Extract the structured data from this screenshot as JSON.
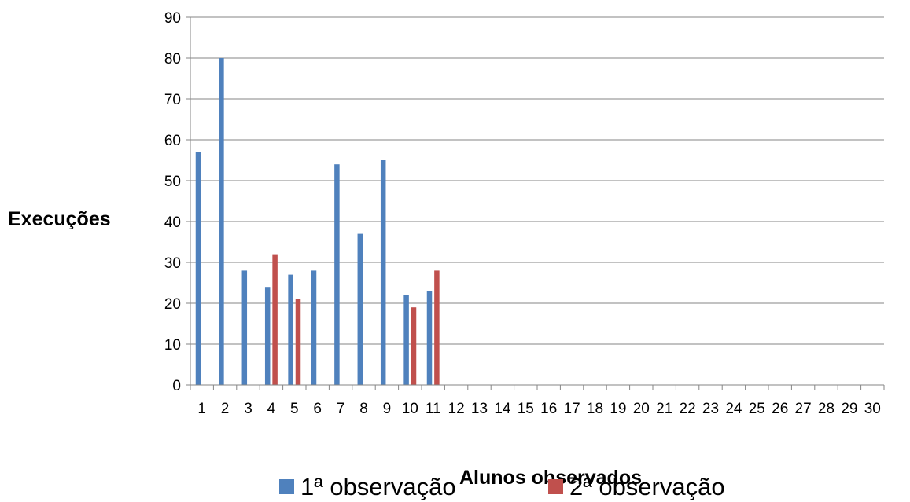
{
  "chart_data": {
    "type": "bar",
    "title": "",
    "xlabel": "Alunos observados",
    "ylabel": "Execuções",
    "ylim": [
      0,
      90
    ],
    "yticks": [
      0,
      10,
      20,
      30,
      40,
      50,
      60,
      70,
      80,
      90
    ],
    "grid": true,
    "legend_position": "bottom",
    "categories": [
      "1",
      "2",
      "3",
      "4",
      "5",
      "6",
      "7",
      "8",
      "9",
      "10",
      "11",
      "12",
      "13",
      "14",
      "15",
      "16",
      "17",
      "18",
      "19",
      "20",
      "21",
      "22",
      "23",
      "24",
      "25",
      "26",
      "27",
      "28",
      "29",
      "30"
    ],
    "series": [
      {
        "name": "1ª observação",
        "color": "#4F81BD",
        "values": [
          57,
          80,
          28,
          24,
          27,
          28,
          54,
          37,
          55,
          22,
          23,
          null,
          null,
          null,
          null,
          null,
          null,
          null,
          null,
          null,
          null,
          null,
          null,
          null,
          null,
          null,
          null,
          null,
          null,
          null
        ]
      },
      {
        "name": "2ª observação",
        "color": "#C0504D",
        "values": [
          null,
          null,
          null,
          32,
          21,
          null,
          null,
          null,
          null,
          19,
          28,
          null,
          null,
          null,
          null,
          null,
          null,
          null,
          null,
          null,
          null,
          null,
          null,
          null,
          null,
          null,
          null,
          null,
          null,
          null
        ]
      }
    ]
  }
}
